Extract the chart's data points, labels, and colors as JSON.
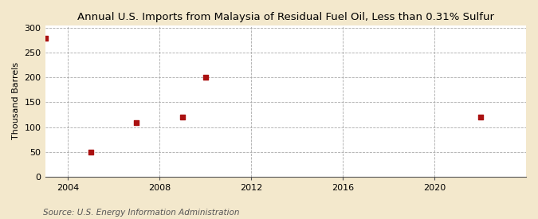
{
  "title": "Annual U.S. Imports from Malaysia of Residual Fuel Oil, Less than 0.31% Sulfur",
  "ylabel": "Thousand Barrels",
  "source": "Source: U.S. Energy Information Administration",
  "background_color": "#f3e8cc",
  "plot_background_color": "#ffffff",
  "data_points": [
    {
      "year": 2003,
      "value": 280
    },
    {
      "year": 2005,
      "value": 50
    },
    {
      "year": 2007,
      "value": 109
    },
    {
      "year": 2009,
      "value": 120
    },
    {
      "year": 2010,
      "value": 200
    },
    {
      "year": 2022,
      "value": 120
    }
  ],
  "marker_color": "#aa1111",
  "marker_size": 20,
  "xlim": [
    2003,
    2024
  ],
  "ylim": [
    0,
    305
  ],
  "xticks": [
    2004,
    2008,
    2012,
    2016,
    2020
  ],
  "yticks": [
    0,
    50,
    100,
    150,
    200,
    250,
    300
  ],
  "grid_color": "#aaaaaa",
  "grid_linestyle": "--",
  "vgrid_positions": [
    2004,
    2008,
    2012,
    2016,
    2020
  ],
  "title_fontsize": 9.5,
  "label_fontsize": 8,
  "tick_fontsize": 8,
  "source_fontsize": 7.5
}
